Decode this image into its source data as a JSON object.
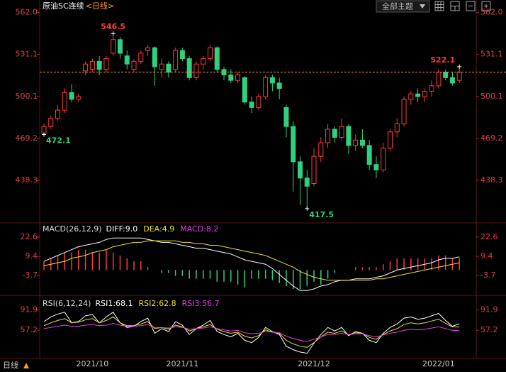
{
  "header": {
    "title": "原油SC连续",
    "period": "<日线>",
    "theme_button": "全部主题"
  },
  "footer": {
    "period": "日线"
  },
  "chart_data": [
    {
      "type": "candlestick",
      "categories": [
        null,
        null,
        null,
        null,
        null,
        null,
        null,
        "2021/10",
        null,
        null,
        null,
        null,
        null,
        null,
        null,
        null,
        null,
        null,
        null,
        null,
        "2021/11",
        null,
        null,
        null,
        null,
        null,
        null,
        null,
        null,
        null,
        null,
        null,
        null,
        null,
        null,
        null,
        null,
        null,
        null,
        "2021/12",
        null,
        null,
        null,
        null,
        null,
        null,
        null,
        null,
        null,
        null,
        null,
        null,
        null,
        null,
        null,
        null,
        null,
        "2022/01",
        null,
        null,
        null
      ],
      "open": [
        473,
        478,
        484,
        490,
        503,
        498,
        519,
        520,
        526,
        520,
        532,
        542,
        530,
        520,
        526,
        534,
        536,
        520,
        524,
        520,
        534,
        528,
        514,
        524,
        528,
        536,
        520,
        516,
        512,
        514,
        496,
        492,
        500,
        514,
        510,
        492,
        478,
        452,
        440,
        436,
        456,
        466,
        476,
        470,
        478,
        464,
        468,
        464,
        450,
        446,
        462,
        474,
        480,
        498,
        502,
        500,
        504,
        508,
        518,
        514,
        512
      ],
      "high": [
        480,
        486,
        494,
        506,
        509,
        502,
        526,
        528,
        530,
        530,
        546.5,
        544,
        534,
        528,
        534,
        538,
        537,
        528,
        526,
        536,
        536,
        530,
        526,
        530,
        538,
        537,
        522,
        520,
        518,
        515,
        500,
        502,
        516,
        516,
        514,
        494,
        482,
        456,
        446,
        462,
        470,
        480,
        478,
        484,
        480,
        472,
        476,
        468,
        456,
        466,
        476,
        484,
        500,
        504,
        506,
        506,
        512,
        520,
        520,
        518,
        522.1
      ],
      "low": [
        472.1,
        476,
        482,
        488,
        496,
        496,
        516,
        518,
        516,
        518,
        530,
        528,
        520,
        518,
        524,
        530,
        508,
        514,
        514,
        518,
        526,
        512,
        512,
        520,
        526,
        518,
        512,
        510,
        510,
        494,
        488,
        490,
        498,
        504,
        498,
        470,
        430,
        420,
        417.5,
        434,
        452,
        462,
        466,
        468,
        458,
        460,
        462,
        446,
        440,
        444,
        460,
        470,
        478,
        494,
        496,
        496,
        500,
        506,
        512,
        508,
        510
      ],
      "close": [
        478,
        484,
        490,
        503,
        498,
        500,
        524,
        526,
        520,
        528,
        542,
        532,
        524,
        526,
        532,
        536,
        522,
        524,
        518,
        534,
        528,
        514,
        524,
        528,
        536,
        520,
        516,
        512,
        516,
        496,
        492,
        500,
        514,
        510,
        506,
        478,
        452,
        440,
        434,
        456,
        466,
        476,
        470,
        478,
        464,
        468,
        464,
        450,
        446,
        462,
        474,
        480,
        498,
        502,
        500,
        504,
        508,
        518,
        514,
        510,
        518
      ],
      "high_labels": [
        null,
        null,
        null,
        null,
        null,
        null,
        null,
        null,
        null,
        null,
        "546.5",
        null,
        null,
        null,
        null,
        null,
        null,
        null,
        null,
        null,
        null,
        null,
        null,
        null,
        null,
        null,
        null,
        null,
        null,
        null,
        null,
        null,
        null,
        null,
        null,
        null,
        null,
        null,
        null,
        null,
        null,
        null,
        null,
        null,
        null,
        null,
        null,
        null,
        null,
        null,
        null,
        null,
        null,
        null,
        null,
        null,
        null,
        null,
        null,
        null,
        "522.1"
      ],
      "low_labels": [
        "472.1",
        null,
        null,
        null,
        null,
        null,
        null,
        null,
        null,
        null,
        null,
        null,
        null,
        null,
        null,
        null,
        null,
        null,
        null,
        null,
        null,
        null,
        null,
        null,
        null,
        null,
        null,
        null,
        null,
        null,
        null,
        null,
        null,
        null,
        null,
        null,
        null,
        null,
        "417.5",
        null,
        null,
        null,
        null,
        null,
        null,
        null,
        null,
        null,
        null,
        null,
        null,
        null,
        null,
        null,
        null,
        null,
        null,
        null,
        null,
        null,
        null
      ],
      "up_color": "#ff3b3b",
      "down_color": "#2fd07f",
      "price_line_color": "#ff9c1a",
      "ylim": [
        408,
        567
      ],
      "yticks": [
        {
          "value": 562,
          "label": "562.0"
        },
        531.1,
        500.1,
        469.2,
        438.3
      ]
    },
    {
      "type": "macd",
      "title": "MACD(26,12,9)",
      "ylim": [
        -16.4,
        30.4
      ],
      "yticks": [
        22.6,
        9.4,
        -3.7
      ],
      "series": [
        {
          "name": "DIFF:9.0",
          "color": "#ffffff",
          "kind": "line",
          "values": [
            6,
            8,
            10,
            12,
            14,
            16,
            17,
            18,
            19,
            21,
            22,
            22,
            22,
            22,
            22,
            21,
            20,
            19,
            19,
            18,
            17,
            16,
            15,
            15,
            14,
            13,
            12,
            11,
            9,
            7,
            6,
            5,
            4,
            1,
            -3,
            -7,
            -11,
            -14,
            -14,
            -13,
            -11,
            -10,
            -8,
            -7,
            -7,
            -6,
            -6,
            -6,
            -5,
            -4,
            -2,
            0,
            1,
            2,
            3,
            4,
            5,
            7,
            8,
            8,
            9
          ]
        },
        {
          "name": "DEA:4.9",
          "color": "#f0e030",
          "kind": "line",
          "values": [
            3,
            4,
            5,
            6,
            8,
            9,
            10,
            12,
            13,
            14,
            16,
            17,
            18,
            19,
            19,
            20,
            20,
            20,
            20,
            20,
            19,
            19,
            18,
            18,
            17,
            17,
            16,
            15,
            14,
            13,
            12,
            11,
            10,
            8,
            6,
            4,
            2,
            -1,
            -3,
            -5,
            -6,
            -7,
            -7,
            -7,
            -7,
            -7,
            -7,
            -7,
            -6,
            -6,
            -5,
            -4,
            -3,
            -2,
            -1,
            0,
            1,
            2,
            3,
            4,
            4.9
          ]
        },
        {
          "name": "MACD:8.2",
          "color": "#e040e0",
          "kind": "bar",
          "up_color": "#ff3b3b",
          "down_color": "#2fd07f",
          "values": [
            6,
            8,
            10,
            12,
            12,
            14,
            14,
            12,
            12,
            14,
            12,
            10,
            8,
            6,
            6,
            2,
            0,
            -2,
            -2,
            -4,
            -4,
            -6,
            -6,
            -6,
            -6,
            -8,
            -8,
            -8,
            -10,
            -12,
            -6,
            -6,
            -6,
            -7,
            -9,
            -11,
            -13,
            -13,
            -11,
            -8,
            -10,
            -6,
            -2,
            0,
            0,
            2,
            2,
            2,
            2,
            4,
            6,
            8,
            8,
            8,
            8,
            8,
            8,
            10,
            10,
            8,
            8.2
          ]
        }
      ]
    },
    {
      "type": "rsi",
      "title": "RSI(6,12,24)",
      "ylim": [
        9,
        112
      ],
      "yticks": [
        91.9,
        57.2
      ],
      "series": [
        {
          "name": "RSI1:68.1",
          "color": "#ffffff",
          "kind": "line",
          "values": [
            72,
            80,
            85,
            88,
            70,
            72,
            82,
            84,
            70,
            80,
            88,
            70,
            62,
            64,
            72,
            78,
            52,
            60,
            55,
            72,
            66,
            50,
            60,
            66,
            74,
            55,
            50,
            46,
            52,
            40,
            36,
            45,
            62,
            55,
            50,
            30,
            24,
            20,
            18,
            35,
            50,
            62,
            56,
            62,
            48,
            55,
            52,
            40,
            36,
            52,
            62,
            68,
            78,
            80,
            76,
            78,
            82,
            86,
            74,
            64,
            68.1
          ]
        },
        {
          "name": "RSI2:62.8",
          "color": "#f0e030",
          "kind": "line",
          "values": [
            65,
            70,
            74,
            77,
            70,
            71,
            75,
            77,
            70,
            74,
            80,
            70,
            65,
            65,
            68,
            72,
            60,
            62,
            59,
            66,
            63,
            56,
            60,
            63,
            67,
            59,
            55,
            52,
            54,
            47,
            44,
            48,
            58,
            54,
            52,
            40,
            34,
            30,
            28,
            36,
            46,
            54,
            52,
            56,
            50,
            53,
            52,
            45,
            42,
            50,
            56,
            60,
            67,
            70,
            68,
            70,
            73,
            76,
            69,
            63,
            62.8
          ]
        },
        {
          "name": "RSI3:56.7",
          "color": "#e040e0",
          "kind": "line",
          "values": [
            60,
            62,
            64,
            66,
            64,
            64,
            66,
            67,
            65,
            66,
            69,
            66,
            64,
            64,
            65,
            67,
            62,
            62,
            61,
            63,
            62,
            59,
            60,
            61,
            63,
            60,
            58,
            56,
            57,
            53,
            51,
            52,
            55,
            54,
            53,
            47,
            43,
            40,
            38,
            42,
            46,
            50,
            50,
            52,
            50,
            51,
            51,
            48,
            46,
            49,
            52,
            54,
            57,
            59,
            58,
            59,
            61,
            63,
            60,
            57,
            56.7
          ]
        }
      ]
    }
  ]
}
